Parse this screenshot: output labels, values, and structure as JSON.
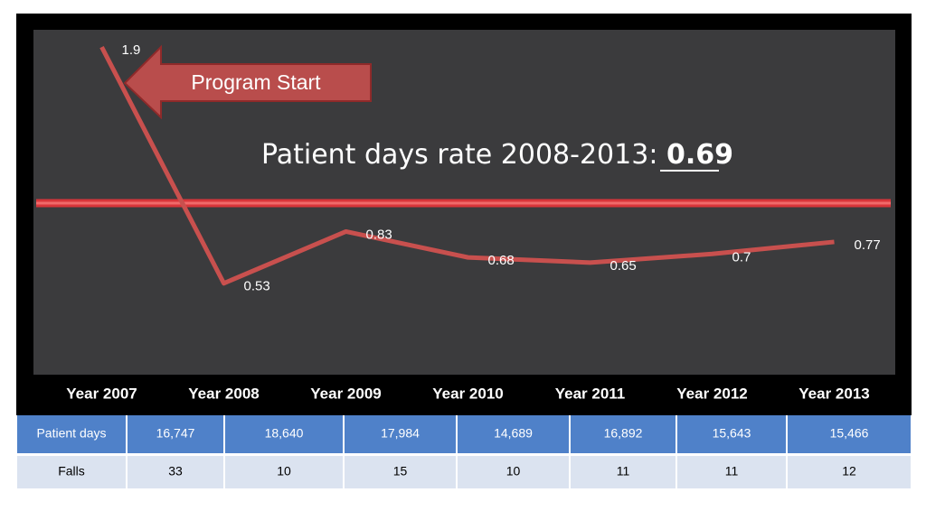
{
  "chart_data": {
    "type": "line",
    "categories": [
      "Year 2007",
      "Year 2008",
      "Year 2009",
      "Year 2010",
      "Year 2011",
      "Year 2012",
      "Year 2013"
    ],
    "series": [
      {
        "color": "#c8504e",
        "values": [
          1.9,
          0.53,
          0.83,
          0.68,
          0.65,
          0.7,
          0.77
        ]
      }
    ],
    "ylim": [
      0,
      2
    ],
    "annotation": "Program Start",
    "rate_label": "Patient days rate 2008-2013:",
    "rate_value": 0.69
  },
  "table": {
    "rows": [
      [
        "Patient days",
        "16,747",
        "18,640",
        "17,984",
        "14,689",
        "16,892",
        "15,643",
        "15,466"
      ],
      [
        "Falls",
        33,
        10,
        15,
        10,
        11,
        11,
        12
      ]
    ]
  }
}
